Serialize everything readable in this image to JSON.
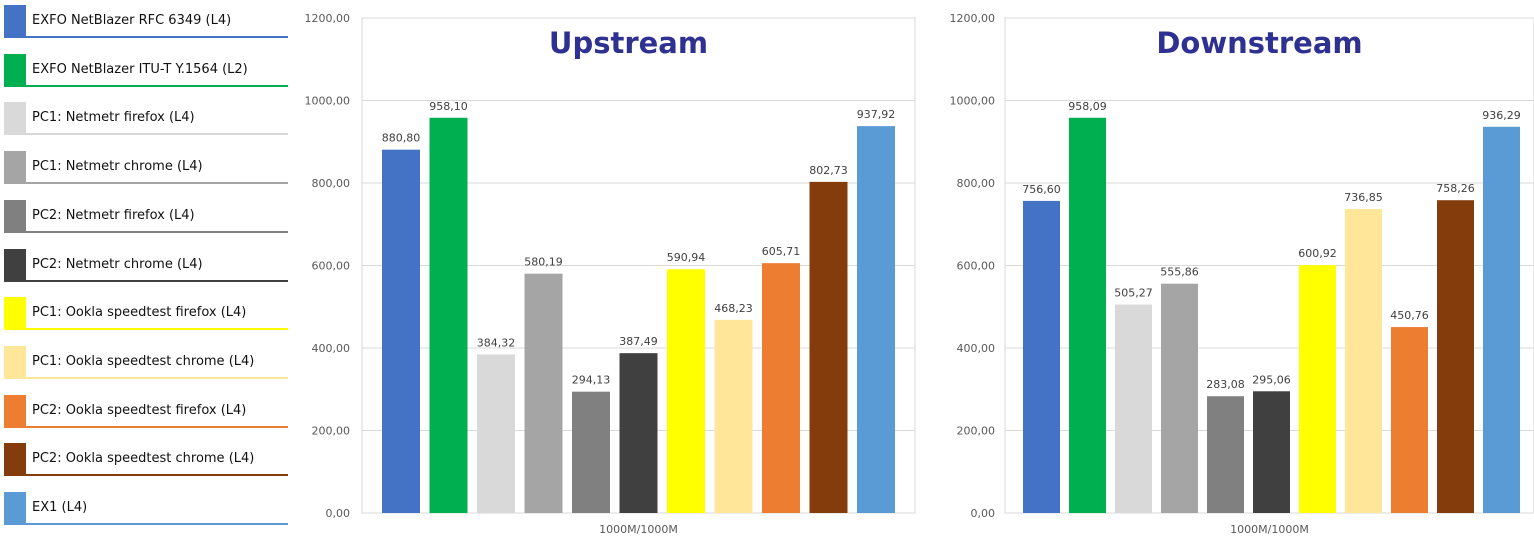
{
  "chart_data": [
    {
      "type": "bar",
      "title": "Upstream",
      "category": "1000M/1000M",
      "ylim": [
        0,
        1200
      ],
      "yticks": [
        "0,00",
        "200,00",
        "400,00",
        "600,00",
        "800,00",
        "1000,00",
        "1200,00"
      ],
      "values": [
        880.8,
        958.1,
        384.32,
        580.19,
        294.13,
        387.49,
        590.94,
        468.23,
        605.71,
        802.73,
        937.92
      ],
      "labels": [
        "880,80",
        "958,10",
        "384,32",
        "580,19",
        "294,13",
        "387,49",
        "590,94",
        "468,23",
        "605,71",
        "802,73",
        "937,92"
      ]
    },
    {
      "type": "bar",
      "title": "Downstream",
      "category": "1000M/1000M",
      "ylim": [
        0,
        1200
      ],
      "yticks": [
        "0,00",
        "200,00",
        "400,00",
        "600,00",
        "800,00",
        "1000,00",
        "1200,00"
      ],
      "values": [
        756.6,
        958.09,
        505.27,
        555.86,
        283.08,
        295.06,
        600.92,
        736.85,
        450.76,
        758.26,
        936.29
      ],
      "labels": [
        "756,60",
        "958,09",
        "505,27",
        "555,86",
        "283,08",
        "295,06",
        "600,92",
        "736,85",
        "450,76",
        "758,26",
        "936,29"
      ]
    }
  ],
  "legend": [
    {
      "label": "EXFO NetBlazer RFC 6349 (L4)",
      "color": "#4472C4"
    },
    {
      "label": "EXFO NetBlazer ITU-T Y.1564 (L2)",
      "color": "#00B050"
    },
    {
      "label": "PC1: Netmetr firefox (L4)",
      "color": "#D9D9D9"
    },
    {
      "label": "PC1: Netmetr chrome (L4)",
      "color": "#A5A5A5"
    },
    {
      "label": "PC2: Netmetr firefox (L4)",
      "color": "#808080"
    },
    {
      "label": "PC2: Netmetr chrome (L4)",
      "color": "#404040"
    },
    {
      "label": "PC1: Ookla speedtest firefox (L4)",
      "color": "#FFFF00"
    },
    {
      "label": "PC1: Ookla speedtest chrome (L4)",
      "color": "#FFE699"
    },
    {
      "label": "PC2: Ookla speedtest firefox (L4)",
      "color": "#ED7D31"
    },
    {
      "label": "PC2: Ookla speedtest chrome (L4)",
      "color": "#843C0C"
    },
    {
      "label": "EX1 (L4)",
      "color": "#5B9BD5"
    }
  ],
  "title_color": "#2E3192"
}
